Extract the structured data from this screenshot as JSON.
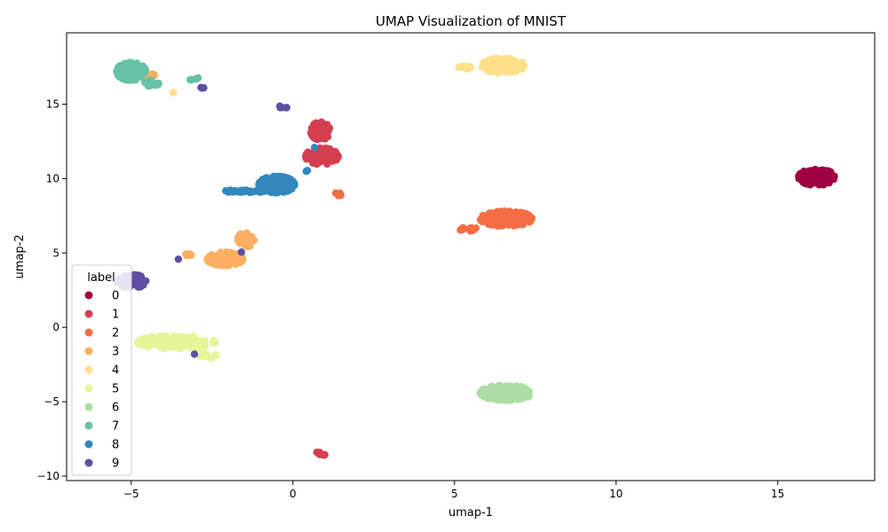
{
  "chart_data": {
    "type": "scatter",
    "title": "UMAP Visualization of MNIST",
    "xlabel": "umap-1",
    "ylabel": "umap-2",
    "xlim": [
      -7.0,
      18.0
    ],
    "ylim": [
      -10.3,
      19.8
    ],
    "xticks": [
      -5,
      0,
      5,
      10,
      15
    ],
    "yticks": [
      -10,
      -5,
      0,
      5,
      10,
      15
    ],
    "xtick_labels": [
      "−5",
      "0",
      "5",
      "10",
      "15"
    ],
    "ytick_labels": [
      "−10",
      "−5",
      "0",
      "5",
      "10",
      "15"
    ],
    "grid": false,
    "legend": {
      "title": "label",
      "placement": "lower-left"
    },
    "colors": {
      "0": "#9e0142",
      "1": "#d53e4f",
      "2": "#f46d43",
      "3": "#fdae61",
      "4": "#fee08b",
      "5": "#e6f598",
      "6": "#abdda4",
      "7": "#66c2a5",
      "8": "#3288bd",
      "9": "#5e4fa2"
    },
    "series": [
      {
        "name": "0",
        "clusters": [
          {
            "cx": 16.2,
            "cy": 10.1,
            "rx": 0.55,
            "ry": 0.55,
            "n": 200
          }
        ]
      },
      {
        "name": "1",
        "clusters": [
          {
            "cx": 0.9,
            "cy": 11.5,
            "rx": 0.5,
            "ry": 0.55,
            "n": 100
          },
          {
            "cx": 0.85,
            "cy": 13.2,
            "rx": 0.3,
            "ry": 0.6,
            "n": 50
          },
          {
            "cx": 0.85,
            "cy": -8.5,
            "rx": 0.15,
            "ry": 0.15,
            "n": 8
          },
          {
            "cx": -1.65,
            "cy": 6.0,
            "rx": 0.03,
            "ry": 0.03,
            "n": 1
          }
        ]
      },
      {
        "name": "2",
        "clusters": [
          {
            "cx": 6.6,
            "cy": 7.3,
            "rx": 0.8,
            "ry": 0.5,
            "n": 150
          },
          {
            "cx": 5.5,
            "cy": 6.6,
            "rx": 0.35,
            "ry": 0.12,
            "n": 20
          },
          {
            "cx": 1.4,
            "cy": 8.95,
            "rx": 0.1,
            "ry": 0.12,
            "n": 6
          }
        ]
      },
      {
        "name": "3",
        "clusters": [
          {
            "cx": -2.1,
            "cy": 4.6,
            "rx": 0.55,
            "ry": 0.45,
            "n": 100
          },
          {
            "cx": -1.45,
            "cy": 5.9,
            "rx": 0.25,
            "ry": 0.5,
            "n": 30
          },
          {
            "cx": -3.3,
            "cy": 4.85,
            "rx": 0.15,
            "ry": 0.1,
            "n": 6
          },
          {
            "cx": -4.45,
            "cy": 16.9,
            "rx": 0.2,
            "ry": 0.15,
            "n": 10
          },
          {
            "cx": -5.0,
            "cy": 17.0,
            "rx": 0.1,
            "ry": 0.1,
            "n": 3
          }
        ]
      },
      {
        "name": "4",
        "clusters": [
          {
            "cx": 6.5,
            "cy": 17.6,
            "rx": 0.65,
            "ry": 0.5,
            "n": 150
          },
          {
            "cx": 5.3,
            "cy": 17.5,
            "rx": 0.3,
            "ry": 0.12,
            "n": 15
          },
          {
            "cx": -3.7,
            "cy": 15.8,
            "rx": 0.05,
            "ry": 0.05,
            "n": 2
          }
        ]
      },
      {
        "name": "5",
        "clusters": [
          {
            "cx": -3.6,
            "cy": -1.0,
            "rx": 1.2,
            "ry": 0.45,
            "n": 150
          },
          {
            "cx": -2.6,
            "cy": -1.9,
            "rx": 0.3,
            "ry": 0.15,
            "n": 15
          }
        ]
      },
      {
        "name": "6",
        "clusters": [
          {
            "cx": 6.6,
            "cy": -4.4,
            "rx": 0.8,
            "ry": 0.5,
            "n": 200
          }
        ]
      },
      {
        "name": "7",
        "clusters": [
          {
            "cx": -5.0,
            "cy": 17.2,
            "rx": 0.45,
            "ry": 0.6,
            "n": 120
          },
          {
            "cx": -4.4,
            "cy": 16.4,
            "rx": 0.25,
            "ry": 0.2,
            "n": 20
          },
          {
            "cx": -3.05,
            "cy": 16.7,
            "rx": 0.15,
            "ry": 0.1,
            "n": 5
          }
        ]
      },
      {
        "name": "8",
        "clusters": [
          {
            "cx": -0.5,
            "cy": 9.6,
            "rx": 0.55,
            "ry": 0.55,
            "n": 150
          },
          {
            "cx": -1.5,
            "cy": 9.15,
            "rx": 0.6,
            "ry": 0.1,
            "n": 30
          },
          {
            "cx": 0.4,
            "cy": 10.5,
            "rx": 0.08,
            "ry": 0.1,
            "n": 3
          },
          {
            "cx": 0.7,
            "cy": 12.1,
            "rx": 0.04,
            "ry": 0.04,
            "n": 1
          }
        ]
      },
      {
        "name": "9",
        "clusters": [
          {
            "cx": -5.0,
            "cy": 3.1,
            "rx": 0.45,
            "ry": 0.45,
            "n": 80
          },
          {
            "cx": -4.7,
            "cy": 2.7,
            "rx": 0.08,
            "ry": 0.08,
            "n": 3
          },
          {
            "cx": -0.3,
            "cy": 14.8,
            "rx": 0.15,
            "ry": 0.1,
            "n": 6
          },
          {
            "cx": -2.8,
            "cy": 16.1,
            "rx": 0.1,
            "ry": 0.05,
            "n": 4
          },
          {
            "cx": -3.05,
            "cy": -1.8,
            "rx": 0.04,
            "ry": 0.04,
            "n": 1
          },
          {
            "cx": -3.55,
            "cy": 4.6,
            "rx": 0.04,
            "ry": 0.04,
            "n": 1
          },
          {
            "cx": -1.6,
            "cy": 5.1,
            "rx": 0.04,
            "ry": 0.04,
            "n": 1
          }
        ]
      }
    ]
  }
}
